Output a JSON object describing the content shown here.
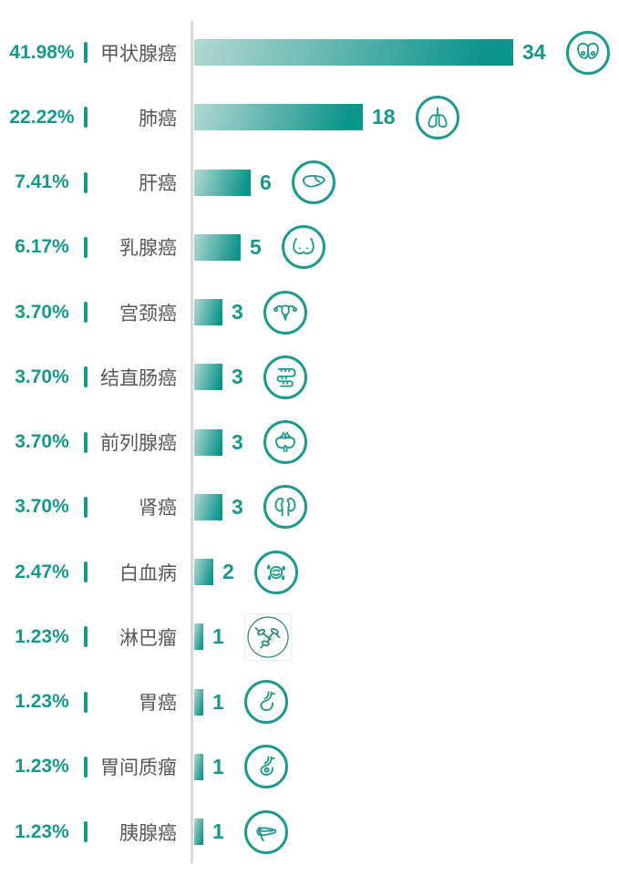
{
  "colors": {
    "accent_teal": "#16988b",
    "bar_gradient_start": "#b2d8d2",
    "bar_gradient_end": "#0b9489",
    "icon_ring": "#1c9a8e",
    "label_gray": "#57585a",
    "axis_gray": "#d9d9d9",
    "background": "#ffffff"
  },
  "chart_data": {
    "type": "bar",
    "orientation": "horizontal",
    "grid": false,
    "legend": false,
    "max_value": 34,
    "rows": [
      {
        "percent": "41.98%",
        "label": "甲状腺癌",
        "value": 34,
        "icon": "thyroid-icon"
      },
      {
        "percent": "22.22%",
        "label": "肺癌",
        "value": 18,
        "icon": "lungs-icon"
      },
      {
        "percent": "7.41%",
        "label": "肝癌",
        "value": 6,
        "icon": "liver-icon"
      },
      {
        "percent": "6.17%",
        "label": "乳腺癌",
        "value": 5,
        "icon": "breast-icon"
      },
      {
        "percent": "3.70%",
        "label": "宫颈癌",
        "value": 3,
        "icon": "uterus-icon"
      },
      {
        "percent": "3.70%",
        "label": "结直肠癌",
        "value": 3,
        "icon": "intestine-icon"
      },
      {
        "percent": "3.70%",
        "label": "前列腺癌",
        "value": 3,
        "icon": "prostate-icon"
      },
      {
        "percent": "3.70%",
        "label": "肾癌",
        "value": 3,
        "icon": "kidney-icon"
      },
      {
        "percent": "2.47%",
        "label": "白血病",
        "value": 2,
        "icon": "leukemia-icon"
      },
      {
        "percent": "1.23%",
        "label": "淋巴瘤",
        "value": 1,
        "icon": "lymphoma-icon"
      },
      {
        "percent": "1.23%",
        "label": "胃癌",
        "value": 1,
        "icon": "stomach-icon"
      },
      {
        "percent": "1.23%",
        "label": "胃间质瘤",
        "value": 1,
        "icon": "gist-icon"
      },
      {
        "percent": "1.23%",
        "label": "胰腺癌",
        "value": 1,
        "icon": "pancreas-icon"
      }
    ]
  }
}
